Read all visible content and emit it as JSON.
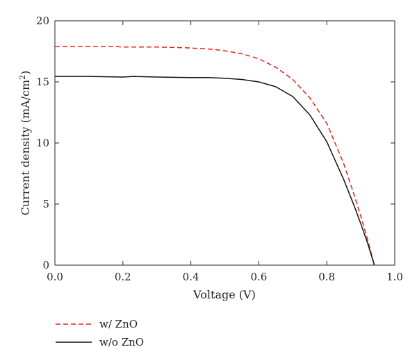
{
  "chart_data": {
    "type": "line",
    "xlabel": "Voltage (V)",
    "ylabel_main": "Current density (mA/cm",
    "ylabel_sup": "2",
    "ylabel_close": ")",
    "xlim": [
      0.0,
      1.0
    ],
    "ylim": [
      0,
      20
    ],
    "xticks": [
      0.0,
      0.2,
      0.4,
      0.6,
      0.8,
      1.0
    ],
    "xtick_labels": [
      "0.0",
      "0.2",
      "0.4",
      "0.6",
      "0.8",
      "1.0"
    ],
    "yticks": [
      0,
      5,
      10,
      15,
      20
    ],
    "ytick_labels": [
      "0",
      "5",
      "10",
      "15",
      "20"
    ],
    "grid": false,
    "legend_position": "bottom-left",
    "series": [
      {
        "name": "w/ ZnO",
        "color": "#e0201b",
        "style": "dashed",
        "x": [
          0.0,
          0.1,
          0.18,
          0.2,
          0.3,
          0.38,
          0.45,
          0.5,
          0.55,
          0.6,
          0.65,
          0.7,
          0.75,
          0.8,
          0.85,
          0.88,
          0.9,
          0.92,
          0.94
        ],
        "y": [
          17.9,
          17.9,
          17.9,
          17.85,
          17.85,
          17.8,
          17.7,
          17.55,
          17.3,
          16.9,
          16.2,
          15.2,
          13.7,
          11.6,
          8.3,
          5.8,
          4.0,
          2.1,
          0.0
        ]
      },
      {
        "name": "w/o ZnO",
        "color": "#111111",
        "style": "solid",
        "x": [
          0.0,
          0.1,
          0.2,
          0.23,
          0.3,
          0.4,
          0.45,
          0.5,
          0.55,
          0.6,
          0.65,
          0.7,
          0.75,
          0.8,
          0.85,
          0.88,
          0.9,
          0.92,
          0.94
        ],
        "y": [
          15.45,
          15.45,
          15.4,
          15.45,
          15.4,
          15.35,
          15.35,
          15.3,
          15.2,
          15.0,
          14.6,
          13.8,
          12.3,
          10.1,
          7.0,
          4.9,
          3.4,
          1.8,
          0.0
        ]
      }
    ]
  }
}
